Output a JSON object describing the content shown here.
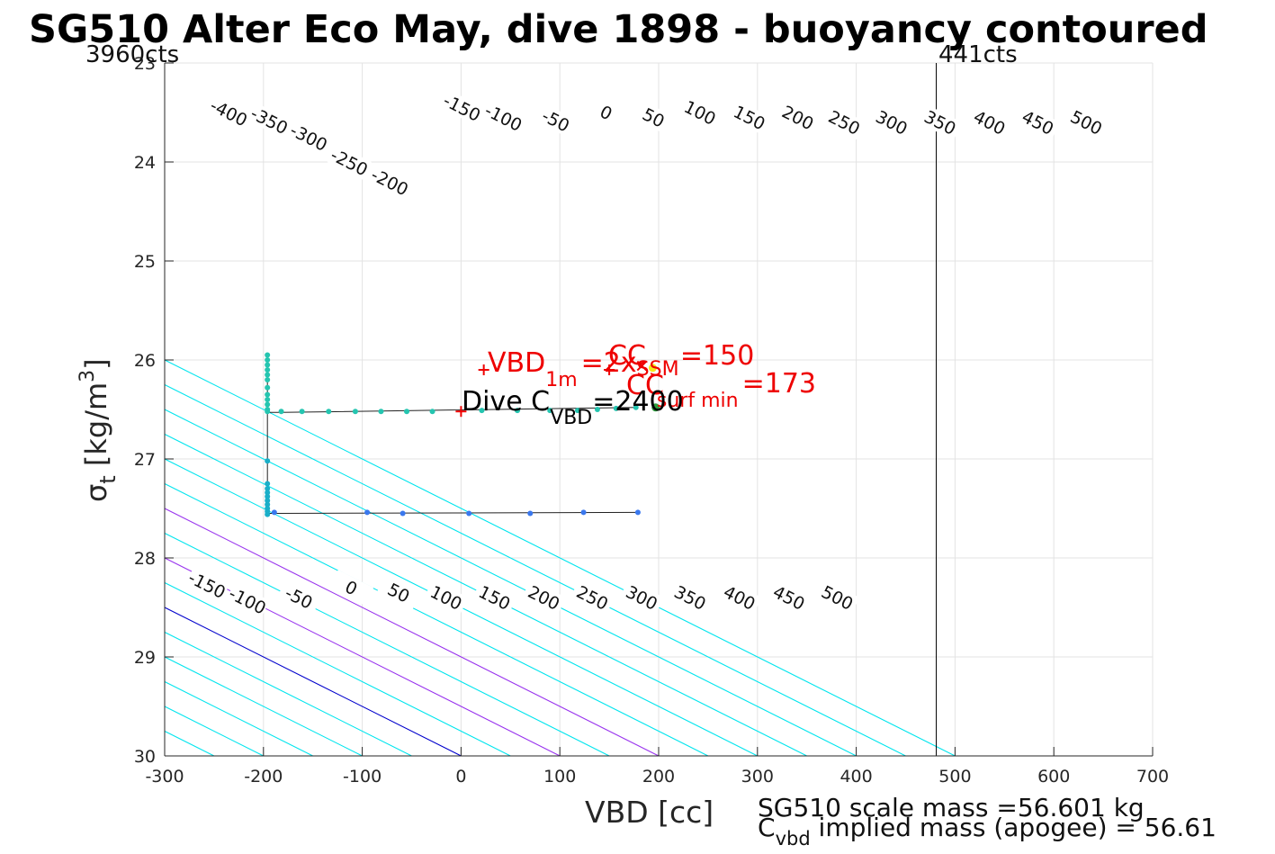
{
  "chart_data": {
    "type": "scatter",
    "title": "SG510 Alter Eco May, dive 1898 - buoyancy contoured",
    "xlabel": "VBD [cc]",
    "ylabel_main": "σ",
    "ylabel_sub": "t",
    "ylabel_unit": " [kg/m",
    "ylabel_sup": "3",
    "ylabel_close": "]",
    "xlim": [
      -300,
      700
    ],
    "ylim": [
      30,
      23
    ],
    "y_reversed": true,
    "grid": true,
    "x_ticks": [
      -300,
      -200,
      -100,
      0,
      100,
      200,
      300,
      400,
      500,
      600,
      700
    ],
    "x_tick_labels": [
      "-300",
      "-200",
      "-100",
      "0",
      "100",
      "200",
      "300",
      "400",
      "500",
      "600",
      "700"
    ],
    "y_ticks": [
      23,
      24,
      25,
      26,
      27,
      28,
      29,
      30
    ],
    "y_tick_labels": [
      "23",
      "24",
      "25",
      "26",
      "27",
      "28",
      "29",
      "30"
    ],
    "corner_left": "3960cts",
    "corner_right": "441cts",
    "contour_slope": 200,
    "contours": [
      {
        "level": -400,
        "color": "#00e5ee"
      },
      {
        "level": -350,
        "color": "#00e5ee"
      },
      {
        "level": -300,
        "color": "#00e5ee"
      },
      {
        "level": -250,
        "color": "#00e5ee"
      },
      {
        "level": -200,
        "color": "#00e5ee"
      },
      {
        "level": -150,
        "color": "#00e5ee"
      },
      {
        "level": -100,
        "color": "#00e5ee"
      },
      {
        "level": -50,
        "color": "#00e5ee"
      },
      {
        "level": 0,
        "color": "#0000cc"
      },
      {
        "level": 50,
        "color": "#00e5ee"
      },
      {
        "level": 100,
        "color": "#9933ee"
      },
      {
        "level": 150,
        "color": "#00e5ee"
      },
      {
        "level": 200,
        "color": "#9933ee"
      },
      {
        "level": 250,
        "color": "#00e5ee"
      },
      {
        "level": 300,
        "color": "#00e5ee"
      },
      {
        "level": 350,
        "color": "#00e5ee"
      },
      {
        "level": 400,
        "color": "#00e5ee"
      },
      {
        "level": 450,
        "color": "#00e5ee"
      },
      {
        "level": 500,
        "color": "#00e5ee"
      }
    ],
    "top_contour_labels": [
      {
        "text": "-400",
        "x": -235,
        "y": 23.5
      },
      {
        "text": "-350",
        "x": -194,
        "y": 23.58
      },
      {
        "text": "-300",
        "x": -154,
        "y": 23.75
      },
      {
        "text": "-250",
        "x": -113,
        "y": 24.0
      },
      {
        "text": "-200",
        "x": -72,
        "y": 24.2
      },
      {
        "text": "-150",
        "x": 1,
        "y": 23.45
      },
      {
        "text": "-100",
        "x": 43,
        "y": 23.55
      },
      {
        "text": "-50",
        "x": 96,
        "y": 23.58
      },
      {
        "text": "0",
        "x": 147,
        "y": 23.5
      },
      {
        "text": "50",
        "x": 195,
        "y": 23.55
      },
      {
        "text": "100",
        "x": 242,
        "y": 23.5
      },
      {
        "text": "150",
        "x": 292,
        "y": 23.55
      },
      {
        "text": "200",
        "x": 341,
        "y": 23.55
      },
      {
        "text": "250",
        "x": 388,
        "y": 23.6
      },
      {
        "text": "300",
        "x": 436,
        "y": 23.6
      },
      {
        "text": "350",
        "x": 485,
        "y": 23.6
      },
      {
        "text": "400",
        "x": 535,
        "y": 23.6
      },
      {
        "text": "450",
        "x": 584,
        "y": 23.6
      },
      {
        "text": "500",
        "x": 633,
        "y": 23.6
      }
    ],
    "bottom_contour_labels": [
      {
        "text": "-150",
        "x": -257,
        "y": 28.27
      },
      {
        "text": "-100",
        "x": -216,
        "y": 28.43
      },
      {
        "text": "-50",
        "x": -164,
        "y": 28.4
      },
      {
        "text": "0",
        "x": -111,
        "y": 28.3
      },
      {
        "text": "50",
        "x": -63,
        "y": 28.35
      },
      {
        "text": "100",
        "x": -15,
        "y": 28.4
      },
      {
        "text": "150",
        "x": 34,
        "y": 28.4
      },
      {
        "text": "200",
        "x": 84,
        "y": 28.4
      },
      {
        "text": "250",
        "x": 133,
        "y": 28.4
      },
      {
        "text": "300",
        "x": 183,
        "y": 28.4
      },
      {
        "text": "350",
        "x": 232,
        "y": 28.4
      },
      {
        "text": "400",
        "x": 282,
        "y": 28.4
      },
      {
        "text": "450",
        "x": 332,
        "y": 28.4
      },
      {
        "text": "500",
        "x": 381,
        "y": 28.4
      }
    ],
    "vertical_line_x": 481,
    "series": [
      {
        "color": "#25c5b0",
        "points": [
          [
            -196,
            25.95
          ],
          [
            -196,
            26.0
          ],
          [
            -196,
            26.05
          ],
          [
            -196,
            26.1
          ],
          [
            -196,
            26.15
          ],
          [
            -196,
            26.2
          ],
          [
            -196,
            26.28
          ],
          [
            -196,
            26.35
          ],
          [
            -196,
            26.4
          ],
          [
            -196,
            26.45
          ],
          [
            -196,
            26.5
          ],
          [
            -196,
            26.52
          ],
          [
            -182,
            26.52
          ],
          [
            -161,
            26.52
          ],
          [
            -134,
            26.52
          ],
          [
            -107,
            26.52
          ],
          [
            -81,
            26.52
          ],
          [
            -55,
            26.52
          ],
          [
            -29,
            26.52
          ],
          [
            21,
            26.51
          ],
          [
            57,
            26.51
          ],
          [
            90,
            26.51
          ],
          [
            118,
            26.51
          ],
          [
            138,
            26.5
          ],
          [
            157,
            26.49
          ],
          [
            177,
            26.48
          ]
        ]
      },
      {
        "color": "#1aaec8",
        "points": [
          [
            -196,
            27.02
          ],
          [
            -196,
            27.25
          ],
          [
            -196,
            27.3
          ],
          [
            -196,
            27.34
          ],
          [
            -196,
            27.38
          ],
          [
            -196,
            27.42
          ],
          [
            -196,
            27.46
          ],
          [
            -196,
            27.5
          ],
          [
            -196,
            27.53
          ],
          [
            -196,
            27.56
          ]
        ]
      },
      {
        "color": "#3a78ee",
        "points": [
          [
            -189,
            27.54
          ],
          [
            -95,
            27.54
          ],
          [
            -59,
            27.55
          ],
          [
            8,
            27.55
          ],
          [
            70,
            27.55
          ],
          [
            124,
            27.54
          ],
          [
            179,
            27.54
          ]
        ]
      }
    ],
    "track": [
      [
        -196,
        25.95
      ],
      [
        -196,
        26.53
      ],
      [
        -182,
        26.53
      ],
      [
        177,
        26.48
      ],
      [
        -182,
        26.53
      ],
      [
        -196,
        26.53
      ],
      [
        -196,
        26.53
      ],
      [
        -196,
        27.02
      ],
      [
        -196,
        27.55
      ],
      [
        -189,
        27.55
      ],
      [
        179,
        27.54
      ]
    ],
    "markers": [
      {
        "name": "dive-cvbd-marker",
        "x": 0,
        "y": 26.52,
        "color": "#ee0000",
        "symbol": "+"
      },
      {
        "name": "vbd-1m-marker",
        "x": 23,
        "y": 26.1,
        "color": "#ee0000",
        "symbol": "+"
      },
      {
        "name": "cc-marker",
        "x": 150,
        "y": 26.1,
        "color": "#ee0000",
        "symbol": "+"
      },
      {
        "name": "ssm-marker",
        "x": 183,
        "y": 26.06,
        "color": "#ee0000",
        "symbol": "x"
      },
      {
        "name": "yellow-marker",
        "x": 194,
        "y": 26.08,
        "color": "#f4e81a",
        "symbol": "o"
      },
      {
        "name": "csurf-marker",
        "x": 197,
        "y": 26.48,
        "color": "#2e9e3e",
        "symbol": "o"
      }
    ],
    "annotations": {
      "vbd1m_main": "VBD",
      "vbd1m_sub": "1m",
      "vbd1m_rest": "=2x",
      "ssm_sub": "SSM",
      "cc_text": "CC",
      "cc_value": "=150",
      "cc2_text": "CC",
      "cc2_sub": "surf min",
      "cc2_value": "=173",
      "dive_main": "Dive C",
      "dive_sub": "VBD",
      "dive_value": "=2400"
    },
    "footer_line1": "SG510 scale mass =56.601 kg",
    "footer_line2_c": "C",
    "footer_line2_sub": "vbd",
    "footer_line2_rest": " implied mass (apogee) = 56.61"
  }
}
